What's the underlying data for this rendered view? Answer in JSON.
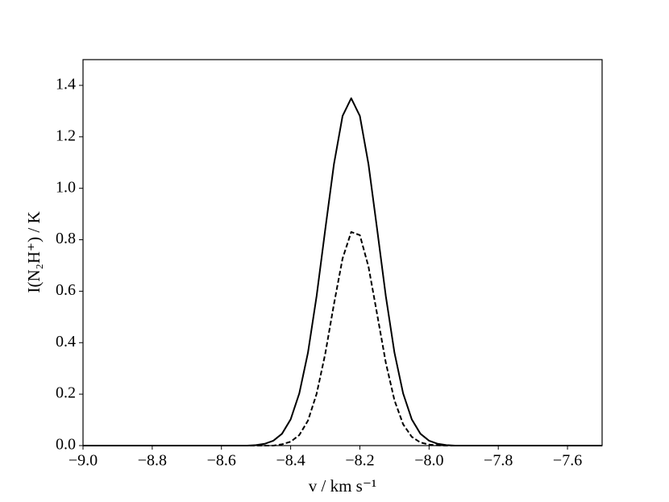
{
  "chart_data": {
    "type": "line",
    "xlabel": "v / km s⁻¹",
    "ylabel": "I(N₂H⁺) / K",
    "x": [
      -9.0,
      -8.975,
      -8.95,
      -8.925,
      -8.9,
      -8.875,
      -8.85,
      -8.825,
      -8.8,
      -8.775,
      -8.75,
      -8.725,
      -8.7,
      -8.675,
      -8.65,
      -8.625,
      -8.6,
      -8.575,
      -8.55,
      -8.525,
      -8.5,
      -8.475,
      -8.45,
      -8.425,
      -8.4,
      -8.375,
      -8.35,
      -8.325,
      -8.3,
      -8.275,
      -8.25,
      -8.225,
      -8.2,
      -8.175,
      -8.15,
      -8.125,
      -8.1,
      -8.075,
      -8.05,
      -8.025,
      -8.0,
      -7.975,
      -7.95,
      -7.925,
      -7.9,
      -7.875,
      -7.85,
      -7.825,
      -7.8,
      -7.775,
      -7.75,
      -7.725,
      -7.7,
      -7.675,
      -7.65,
      -7.625,
      -7.6,
      -7.575,
      -7.55,
      -7.525,
      -7.5
    ],
    "series": [
      {
        "color": "#000000",
        "dash": false,
        "values": [
          0,
          0,
          0,
          0,
          0,
          0,
          0,
          0,
          0,
          0,
          0,
          0,
          0,
          0,
          0,
          0,
          0,
          0,
          0,
          0,
          0.002,
          0.007,
          0.019,
          0.046,
          0.102,
          0.203,
          0.361,
          0.581,
          0.84,
          1.093,
          1.281,
          1.35,
          1.281,
          1.093,
          0.84,
          0.581,
          0.361,
          0.203,
          0.102,
          0.046,
          0.019,
          0.007,
          0.002,
          0,
          0,
          0,
          0,
          0,
          0,
          0,
          0,
          0,
          0,
          0,
          0,
          0,
          0,
          0,
          0,
          0,
          0
        ]
      },
      {
        "color": "#000000",
        "dash": true,
        "values": [
          0,
          0,
          0,
          0,
          0,
          0,
          0,
          0,
          0,
          0,
          0,
          0,
          0,
          0,
          0,
          0,
          0,
          0,
          0,
          0,
          0,
          0,
          0,
          0.005,
          0.015,
          0.041,
          0.097,
          0.201,
          0.357,
          0.549,
          0.727,
          0.83,
          0.818,
          0.695,
          0.51,
          0.322,
          0.176,
          0.083,
          0.034,
          0.012,
          0.004,
          0.001,
          0,
          0,
          0,
          0,
          0,
          0,
          0,
          0,
          0,
          0,
          0,
          0,
          0,
          0,
          0,
          0,
          0,
          0,
          0
        ]
      }
    ],
    "xlim": [
      -9.0,
      -7.5
    ],
    "ylim": [
      0,
      1.5
    ],
    "xticks": [
      {
        "value": -9.0,
        "label": "−9.0"
      },
      {
        "value": -8.8,
        "label": "−8.8"
      },
      {
        "value": -8.6,
        "label": "−8.6"
      },
      {
        "value": -8.4,
        "label": "−8.4"
      },
      {
        "value": -8.2,
        "label": "−8.2"
      },
      {
        "value": -8.0,
        "label": "−8.0"
      },
      {
        "value": -7.8,
        "label": "−7.8"
      },
      {
        "value": -7.6,
        "label": "−7.6"
      }
    ],
    "yticks": [
      {
        "value": 0,
        "label": "0.0"
      },
      0.2,
      0.4,
      0.6,
      0.8,
      {
        "value": 1,
        "label": "1.0"
      },
      1.2,
      1.4
    ]
  }
}
